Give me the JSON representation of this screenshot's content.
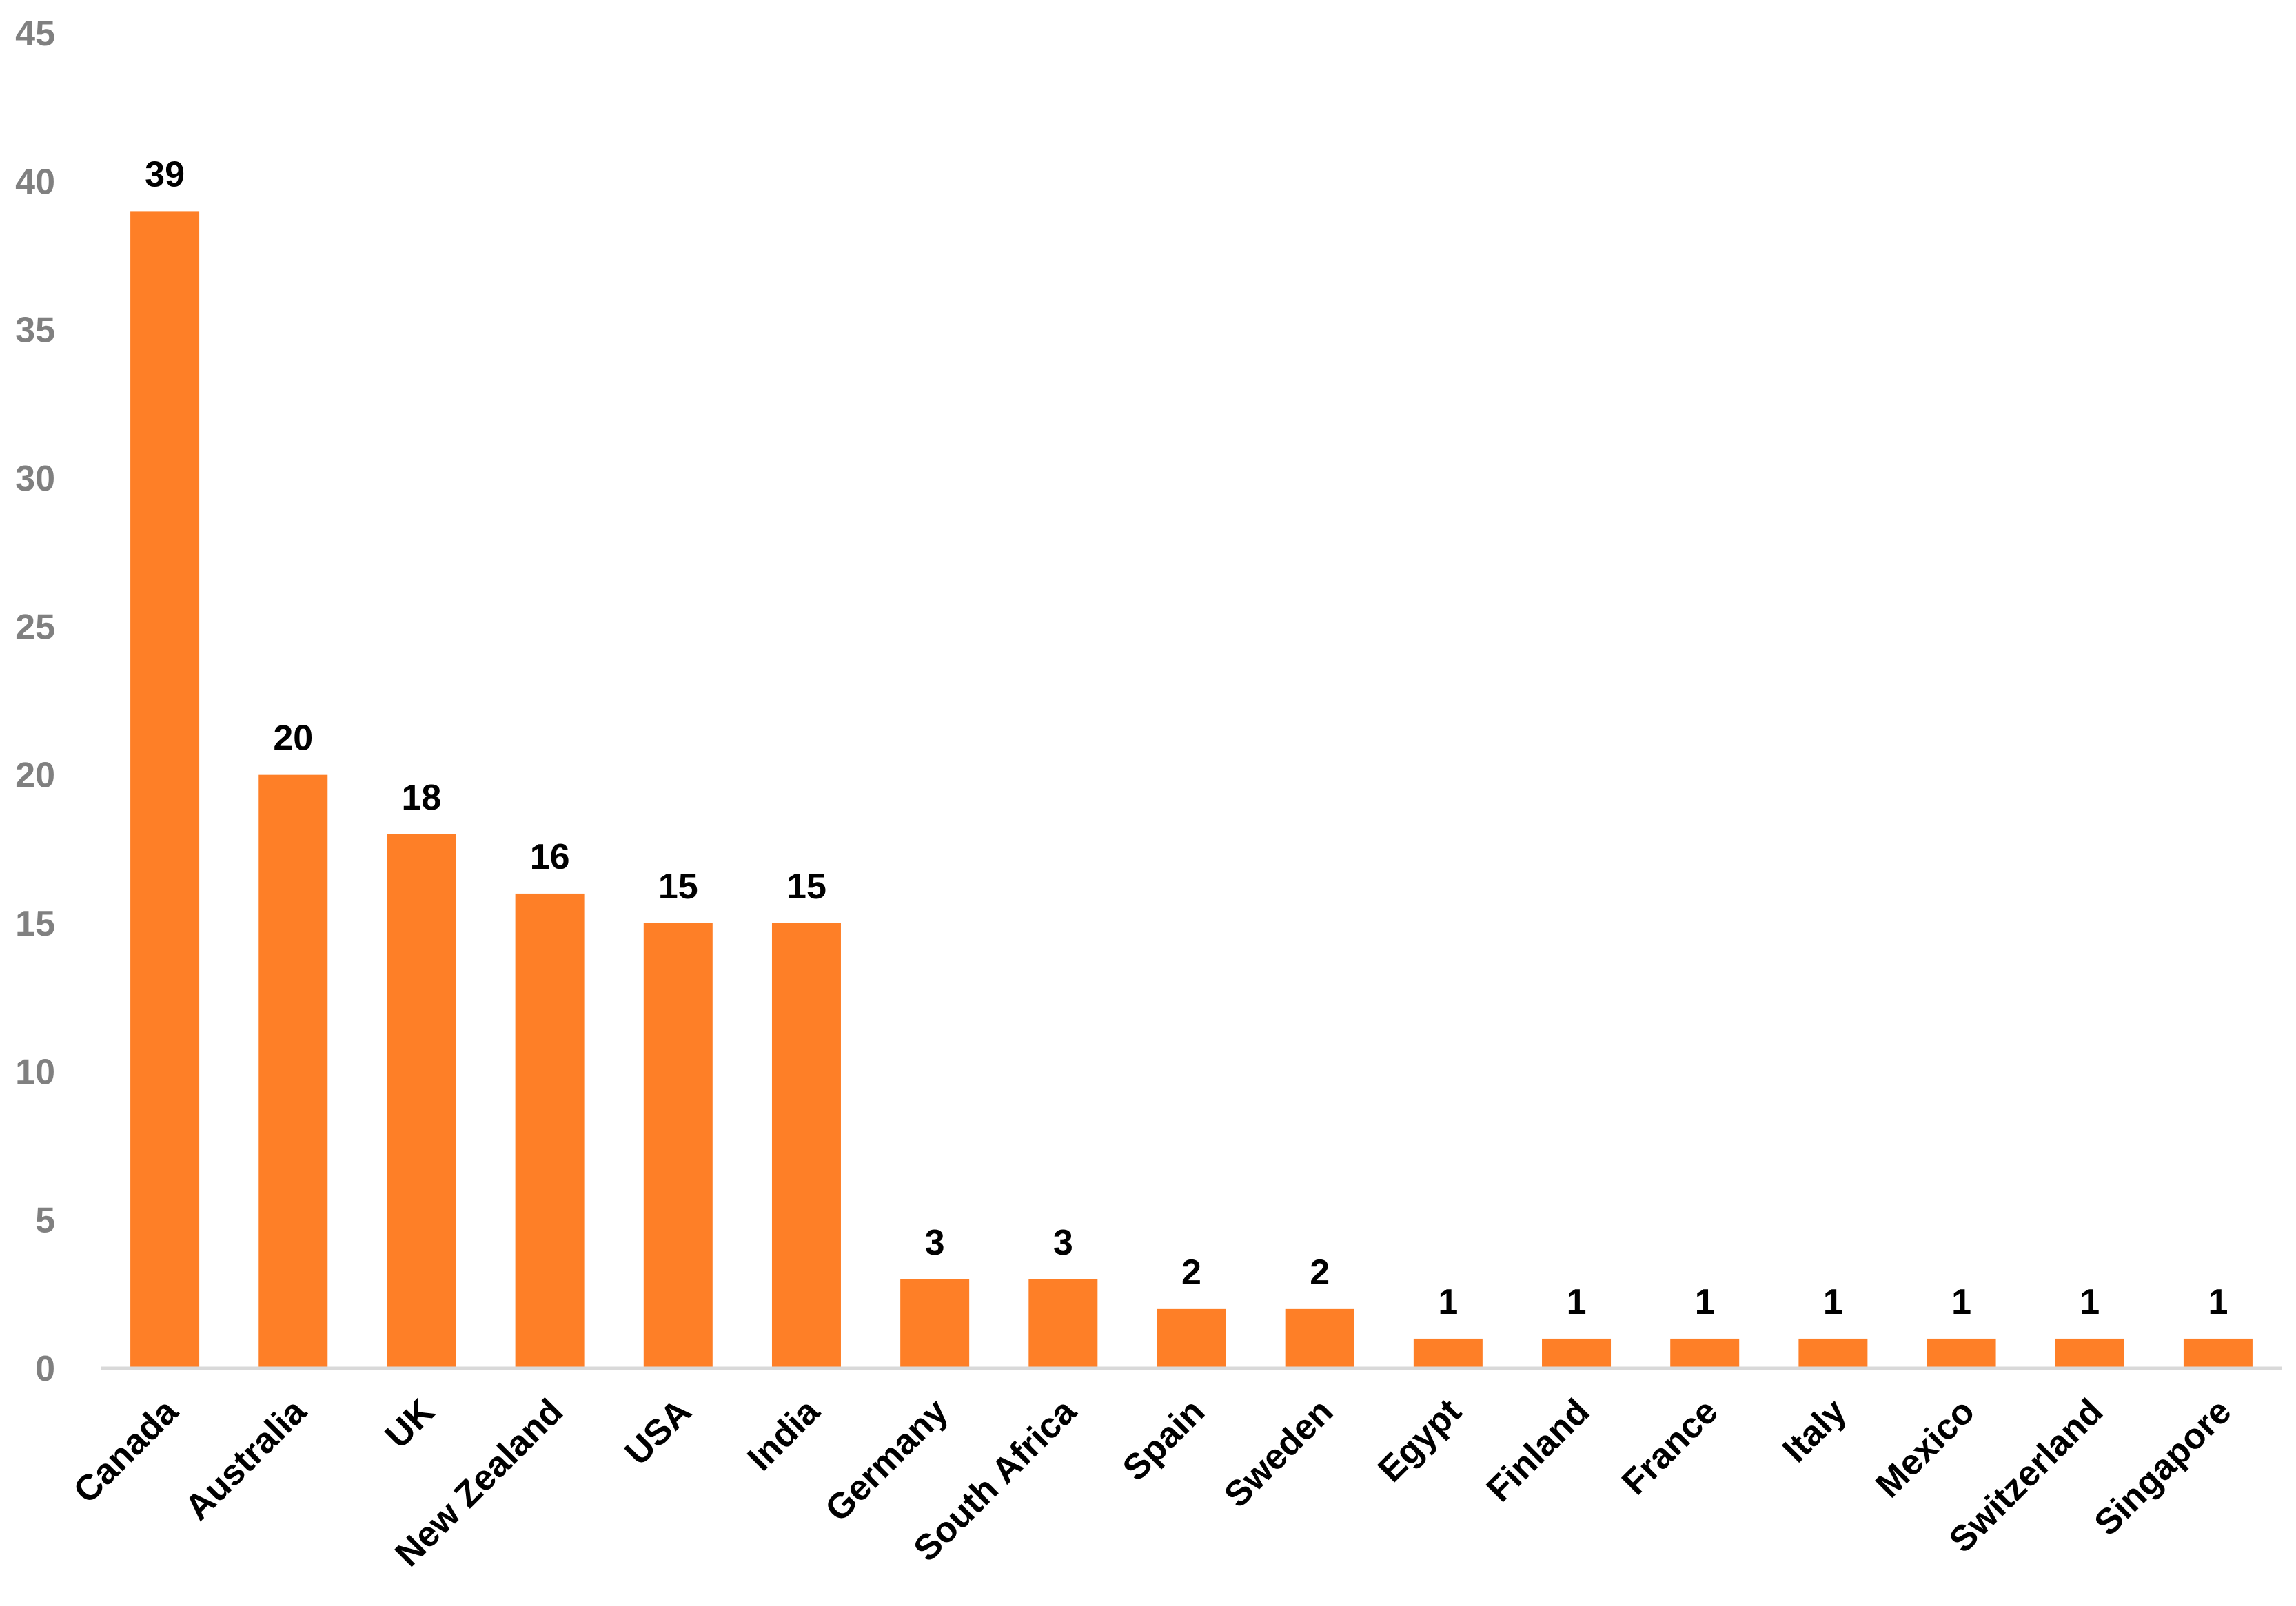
{
  "chart_data": {
    "type": "bar",
    "title": "",
    "xlabel": "",
    "ylabel": "",
    "categories": [
      "Canada",
      "Australia",
      "UK",
      "New Zealand",
      "USA",
      "India",
      "Germany",
      "South Africa",
      "Spain",
      "Sweden",
      "Egypt",
      "Finland",
      "France",
      "Italy",
      "Mexico",
      "Switzerland",
      "Singapore"
    ],
    "values": [
      39,
      20,
      18,
      16,
      15,
      15,
      3,
      3,
      2,
      2,
      1,
      1,
      1,
      1,
      1,
      1,
      1
    ],
    "data_labels": [
      "39",
      "20",
      "18",
      "16",
      "15",
      "15",
      "3",
      "3",
      "2",
      "2",
      "1",
      "1",
      "1",
      "1",
      "1",
      "1",
      "1"
    ],
    "ylim": [
      0,
      45
    ],
    "y_ticks": [
      "0",
      "5",
      "10",
      "15",
      "20",
      "25",
      "30",
      "35",
      "40",
      "45"
    ],
    "grid": false,
    "legend": "none",
    "bar_color": "#fe7f27",
    "axis_color": "#d9d9d9"
  }
}
